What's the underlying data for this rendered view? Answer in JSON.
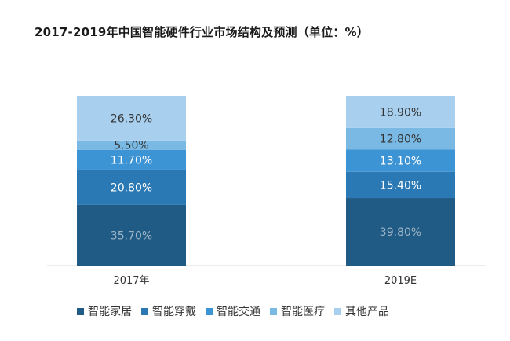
{
  "title": "2017-2019年中国智能硬件行业市场结构及预测（单位：%）",
  "colors": {
    "智能家居": "#1f5b85",
    "智能穿戴": "#2a78b4",
    "智能交通": "#3d94d4",
    "智能医疗": "#7ab9e3",
    "其他产品": "#a8d0ee"
  },
  "chart_data": {
    "type": "bar",
    "stacked": true,
    "categories": [
      "2017年",
      "2019E"
    ],
    "series": [
      {
        "name": "智能家居",
        "values": [
          35.7,
          39.8
        ],
        "labels": [
          "35.70%",
          "39.80%"
        ]
      },
      {
        "name": "智能穿戴",
        "values": [
          20.8,
          15.4
        ],
        "labels": [
          "20.80%",
          "15.40%"
        ]
      },
      {
        "name": "智能交通",
        "values": [
          11.7,
          13.1
        ],
        "labels": [
          "11.70%",
          "13.10%"
        ]
      },
      {
        "name": "智能医疗",
        "values": [
          5.5,
          12.8
        ],
        "labels": [
          "5.50%",
          "12.80%"
        ]
      },
      {
        "name": "其他产品",
        "values": [
          26.3,
          18.9
        ],
        "labels": [
          "26.30%",
          "18.90%"
        ]
      }
    ],
    "ylim": [
      0,
      100
    ],
    "legend_position": "bottom"
  }
}
